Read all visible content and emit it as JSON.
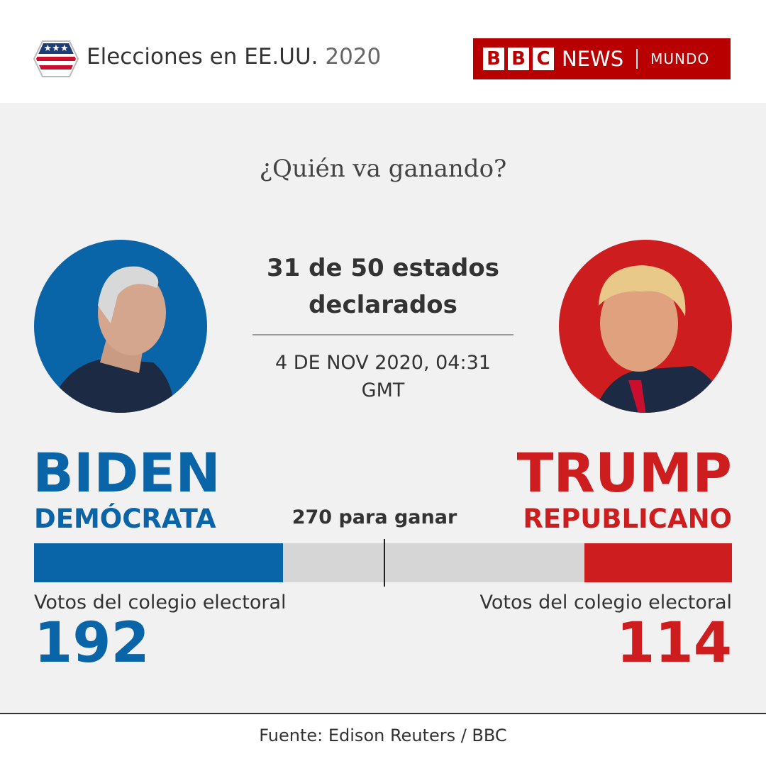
{
  "header": {
    "title": "Elecciones en EE.UU.",
    "year": "2020",
    "brand": {
      "letters": [
        "B",
        "B",
        "C"
      ],
      "news": "NEWS",
      "edition": "MUNDO"
    }
  },
  "question": "¿Quién va ganando?",
  "status": {
    "declared": "31 de 50 estados declarados",
    "updated": "4 DE NOV 2020, 04:31 GMT"
  },
  "chart_data": {
    "type": "bar",
    "xlim": [
      0,
      538
    ],
    "track_color": "#d6d6d6",
    "threshold": {
      "value": 270,
      "label": "270 para ganar"
    },
    "series": [
      {
        "name": "BIDEN",
        "party": "DEMÓCRATA",
        "color": "#0a64a8",
        "side": "left",
        "value_caption": "Votos del colegio electoral",
        "values": [
          192
        ]
      },
      {
        "name": "TRUMP",
        "party": "REPUBLICANO",
        "color": "#ce1d1f",
        "side": "right",
        "value_caption": "Votos del colegio electoral",
        "values": [
          114
        ]
      }
    ]
  },
  "source": "Fuente: Edison Reuters / BBC"
}
